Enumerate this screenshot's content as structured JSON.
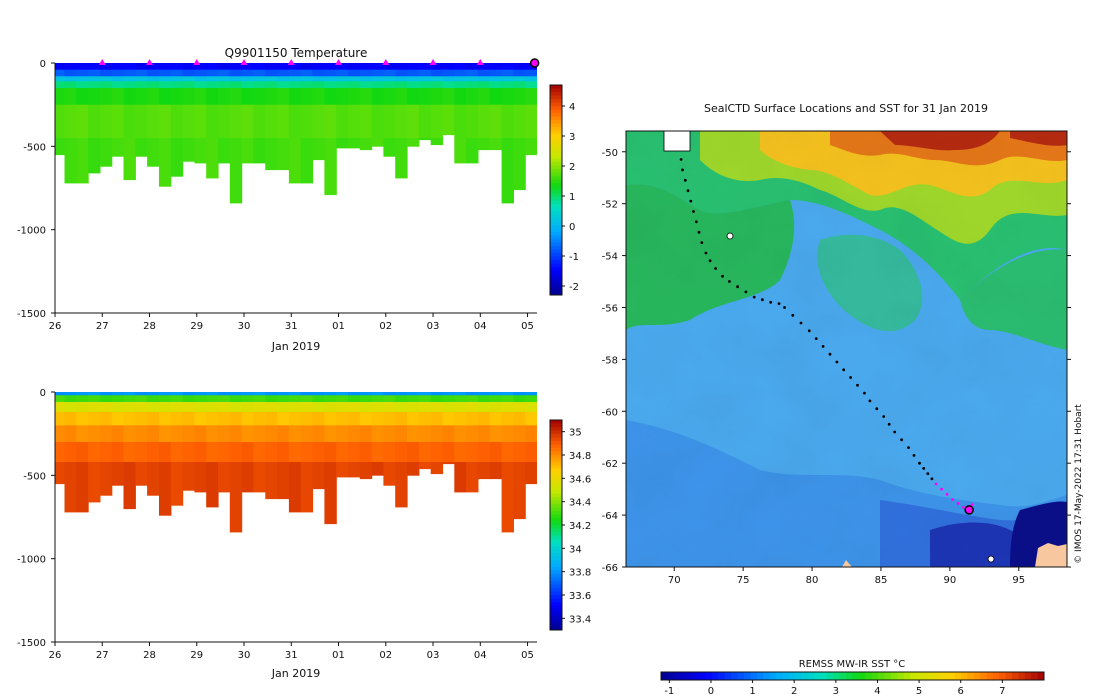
{
  "chart_data": [
    {
      "type": "heatmap",
      "title": "Q9901150  Temperature",
      "xlabel": "Jan 2019",
      "x_ticks": [
        "26",
        "27",
        "28",
        "29",
        "30",
        "31",
        "01",
        "02",
        "03",
        "04",
        "05"
      ],
      "y_ticks": [
        0,
        -500,
        -1000,
        -1500
      ],
      "ylim": [
        -1500,
        0
      ],
      "colorbar": {
        "min": -2.3,
        "max": 4.7,
        "ticks": [
          4,
          3,
          2,
          1,
          0,
          -1,
          -2
        ]
      },
      "profile_days": [
        26.0,
        26.2,
        26.45,
        26.7,
        26.95,
        27.2,
        27.45,
        27.7,
        27.95,
        28.2,
        28.45,
        28.7,
        28.95,
        29.2,
        29.45,
        29.7,
        29.95,
        30.2,
        30.45,
        30.7,
        30.95,
        31.2,
        31.45,
        31.7,
        31.95,
        32.2,
        32.45,
        32.7,
        32.95,
        33.2,
        33.45,
        33.7,
        33.95,
        34.2,
        34.45,
        34.7,
        34.95,
        35.2,
        35.45,
        35.7,
        35.95,
        36.2
      ],
      "profile_max_depth_m": [
        550,
        720,
        720,
        660,
        620,
        560,
        700,
        560,
        620,
        740,
        680,
        590,
        600,
        690,
        600,
        840,
        600,
        600,
        640,
        640,
        720,
        720,
        580,
        790,
        510,
        510,
        520,
        500,
        560,
        690,
        500,
        460,
        490,
        430,
        600,
        600,
        520,
        520,
        840,
        760,
        550,
        600
      ],
      "layers": [
        {
          "top_m": 0,
          "bottom_m": 40,
          "value": -1.5
        },
        {
          "top_m": 40,
          "bottom_m": 80,
          "value": -0.8
        },
        {
          "top_m": 80,
          "bottom_m": 110,
          "value": 0.2
        },
        {
          "top_m": 110,
          "bottom_m": 150,
          "value": 0.9
        },
        {
          "top_m": 150,
          "bottom_m": 250,
          "value": 1.4
        },
        {
          "top_m": 250,
          "bottom_m": 450,
          "value": 1.7
        },
        {
          "top_m": 450,
          "bottom_m": 900,
          "value": 1.6
        }
      ],
      "surface_markers": [
        "27",
        "28",
        "29",
        "30",
        "31",
        "01",
        "02",
        "03",
        "04"
      ],
      "current_marker": "05"
    },
    {
      "type": "heatmap",
      "title": "",
      "xlabel": "Jan 2019",
      "x_ticks": [
        "26",
        "27",
        "28",
        "29",
        "30",
        "31",
        "01",
        "02",
        "03",
        "04",
        "05"
      ],
      "y_ticks": [
        0,
        -500,
        -1000,
        -1500
      ],
      "ylim": [
        -1500,
        0
      ],
      "colorbar": {
        "min": 33.3,
        "max": 35.1,
        "ticks": [
          35,
          34.8,
          34.6,
          34.4,
          34.2,
          34,
          33.8,
          33.6,
          33.4
        ]
      },
      "layers": [
        {
          "top_m": 0,
          "bottom_m": 20,
          "value": 33.8
        },
        {
          "top_m": 20,
          "bottom_m": 60,
          "value": 34.3
        },
        {
          "top_m": 60,
          "bottom_m": 120,
          "value": 34.55
        },
        {
          "top_m": 120,
          "bottom_m": 200,
          "value": 34.7
        },
        {
          "top_m": 200,
          "bottom_m": 300,
          "value": 34.8
        },
        {
          "top_m": 300,
          "bottom_m": 420,
          "value": 34.88
        },
        {
          "top_m": 420,
          "bottom_m": 900,
          "value": 34.95
        }
      ]
    },
    {
      "type": "heatmap",
      "title": "SealCTD Surface Locations and SST for 31 Jan 2019",
      "xlim": [
        66.5,
        98.5
      ],
      "ylim": [
        -66,
        -49.2
      ],
      "x_ticks": [
        70,
        75,
        80,
        85,
        90,
        95
      ],
      "y_ticks": [
        -50,
        -52,
        -54,
        -56,
        -58,
        -60,
        -62,
        -64,
        -66
      ],
      "colorbar": {
        "label": "REMSS MW-IR SST °C",
        "min": -1.2,
        "max": 8.0,
        "ticks": [
          -1,
          0,
          1,
          2,
          3,
          4,
          5,
          6,
          7
        ]
      },
      "credit": "© IMOS 17-May-2022 17:31 Hobart",
      "track_lon": [
        70.5,
        70.6,
        70.8,
        71.0,
        71.2,
        71.4,
        71.6,
        71.8,
        72.0,
        72.3,
        72.6,
        73.0,
        73.5,
        74.0,
        74.6,
        75.2,
        75.8,
        76.4,
        77.0,
        77.6,
        78.0,
        78.6,
        79.2,
        79.8,
        80.3,
        80.8,
        81.3,
        81.8,
        82.3,
        82.8,
        83.3,
        83.8,
        84.2,
        84.7,
        85.2,
        85.6,
        86.0,
        86.5,
        87.0,
        87.4,
        87.8,
        88.1,
        88.4,
        88.7,
        89.0,
        89.4,
        89.8,
        90.2,
        90.6,
        91.0,
        91.3,
        91.6
      ],
      "track_lat": [
        -50.3,
        -50.7,
        -51.1,
        -51.5,
        -51.9,
        -52.3,
        -52.7,
        -53.1,
        -53.5,
        -53.9,
        -54.2,
        -54.5,
        -54.8,
        -55.0,
        -55.2,
        -55.4,
        -55.6,
        -55.7,
        -55.8,
        -55.85,
        -56.0,
        -56.3,
        -56.6,
        -56.9,
        -57.2,
        -57.5,
        -57.8,
        -58.1,
        -58.4,
        -58.7,
        -59.0,
        -59.3,
        -59.6,
        -59.9,
        -60.2,
        -60.5,
        -60.8,
        -61.1,
        -61.4,
        -61.7,
        -62.0,
        -62.2,
        -62.4,
        -62.6,
        -62.8,
        -63.0,
        -63.2,
        -63.4,
        -63.55,
        -63.7,
        -63.75,
        -63.6
      ],
      "track_recent_from_index": 44,
      "current_position": {
        "lon": 91.4,
        "lat": -63.8
      }
    }
  ]
}
